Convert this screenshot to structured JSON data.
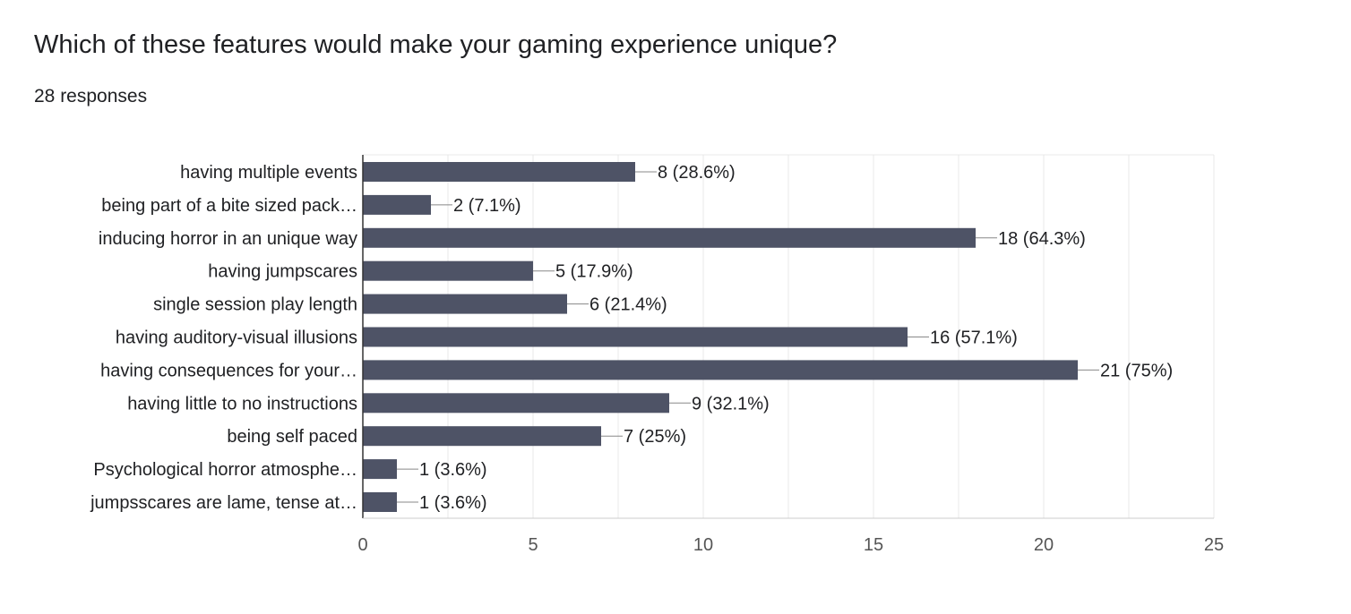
{
  "header": {
    "question": "Which of these features would make your gaming experience unique?",
    "responses": "28 responses"
  },
  "colors": {
    "bar": "#4e5366",
    "grid": "#e8e8e8",
    "axis": "#333333",
    "text": "#202124",
    "tick_text": "#555555"
  },
  "chart_data": {
    "type": "bar",
    "orientation": "horizontal",
    "title": "Which of these features would make your gaming experience unique?",
    "categories": [
      "having multiple events",
      "being part of a bite sized pack…",
      "inducing horror in an unique way",
      "having jumpscares",
      "single session play length",
      "having auditory-visual illusions",
      "having consequences for your…",
      "having little to no instructions",
      "being self paced",
      "Psychological horror atmosphe…",
      "jumpsscares are lame, tense at…"
    ],
    "values": [
      8,
      2,
      18,
      5,
      6,
      16,
      21,
      9,
      7,
      1,
      1
    ],
    "data_labels": [
      "8 (28.6%)",
      "2 (7.1%)",
      "18 (64.3%)",
      "5 (17.9%)",
      "6 (21.4%)",
      "16 (57.1%)",
      "21 (75%)",
      "9 (32.1%)",
      "7 (25%)",
      "1 (3.6%)",
      "1 (3.6%)"
    ],
    "xlim": [
      0,
      25
    ],
    "xticks": [
      0,
      5,
      10,
      15,
      20,
      25
    ],
    "grid": true,
    "legend": "none"
  }
}
